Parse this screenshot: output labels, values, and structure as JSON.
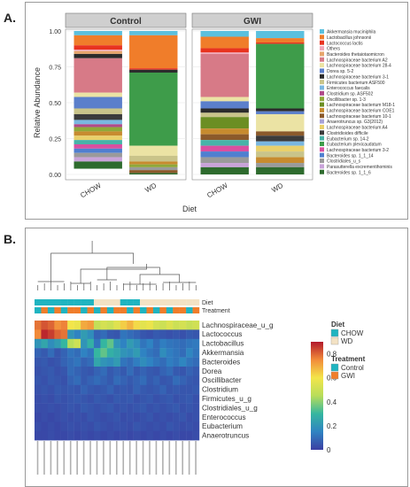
{
  "panelA": {
    "label": "A.",
    "chart_data": {
      "type": "bar",
      "stacked": true,
      "facets": [
        "Control",
        "GWI"
      ],
      "categories": [
        "CHOW",
        "WD"
      ],
      "xlabel": "Diet",
      "ylabel": "Relative Abundance",
      "ylim": [
        0,
        1
      ],
      "yticks": [
        "0.00",
        "0.25",
        "0.50",
        "0.75",
        "1.00"
      ],
      "grid": true,
      "legend_position": "right",
      "legend": [
        {
          "name": "Akkermansia muciniphila",
          "color": "#5bc0de"
        },
        {
          "name": "Lactobacillus johnsonii",
          "color": "#f07d2a"
        },
        {
          "name": "Lactococcus lactis",
          "color": "#e8331f"
        },
        {
          "name": "Others",
          "color": "#f2a7b8"
        },
        {
          "name": "Bacteroides thetaiotaomicron",
          "color": "#e6a56c"
        },
        {
          "name": "Lachnospiraceae bacterium A2",
          "color": "#d77a87"
        },
        {
          "name": "Lachnospiraceae bacterium 28-4",
          "color": "#ebe3a4"
        },
        {
          "name": "Dorea sp. 5-2",
          "color": "#5b7fcb"
        },
        {
          "name": "Lachnospiraceae bacterium 3-1",
          "color": "#2b2b2b"
        },
        {
          "name": "Firmicutes bacterium ASF500",
          "color": "#c9c48a"
        },
        {
          "name": "Enterococcus faecalis",
          "color": "#7ab7e0"
        },
        {
          "name": "Clostridium sp. ASF502",
          "color": "#b04a8a"
        },
        {
          "name": "Oscillibacter sp. 1-3",
          "color": "#8fa83a"
        },
        {
          "name": "Lachnospiraceae bacterium M18-1",
          "color": "#6b8e23"
        },
        {
          "name": "Lachnospiraceae bacterium COE1",
          "color": "#c78b2f"
        },
        {
          "name": "Lachnospiraceae bacterium 10-1",
          "color": "#8b5a2b"
        },
        {
          "name": "Anaerotruncus sp. G3(2012)",
          "color": "#a7a2d6"
        },
        {
          "name": "Lachnospiraceae bacterium A4",
          "color": "#e9d06b"
        },
        {
          "name": "Clostridioides difficile",
          "color": "#3b3b3b"
        },
        {
          "name": "Eubacterium sp. 14-2",
          "color": "#47b3a8"
        },
        {
          "name": "Eubacterium plexicaudatum",
          "color": "#3e9c4a"
        },
        {
          "name": "Lachnospiraceae bacterium 3-2",
          "color": "#d94fa0"
        },
        {
          "name": "Bacteroides sp. 1_1_14",
          "color": "#4f7fd0"
        },
        {
          "name": "Clostridiales_u_s",
          "color": "#9a9a9a"
        },
        {
          "name": "Parasutterella excrementihominis",
          "color": "#c9a3d9"
        },
        {
          "name": "Bacteroides sp. 1_1_6",
          "color": "#2e6b2e"
        }
      ],
      "bars": [
        {
          "facet": "Control",
          "category": "CHOW",
          "segments": [
            [
              "Akkermansia muciniphila",
              0.03
            ],
            [
              "Lactobacillus johnsonii",
              0.07
            ],
            [
              "Lactococcus lactis",
              0.03
            ],
            [
              "Others",
              0.01
            ],
            [
              "Bacteroides thetaiotaomicron",
              0.02
            ],
            [
              "Lachnospiraceae bacterium 3-1",
              0.03
            ],
            [
              "Lachnospiraceae bacterium A2",
              0.24
            ],
            [
              "Lachnospiraceae bacterium 28-4",
              0.03
            ],
            [
              "Dorea sp. 5-2",
              0.08
            ],
            [
              "Firmicutes bacterium ASF500",
              0.04
            ],
            [
              "Clostridioides difficile",
              0.04
            ],
            [
              "Enterococcus faecalis",
              0.03
            ],
            [
              "Clostridium sp. ASF502",
              0.02
            ],
            [
              "Oscillibacter sp. 1-3",
              0.03
            ],
            [
              "Lachnospiraceae bacterium COE1",
              0.03
            ],
            [
              "Lachnospiraceae bacterium A4",
              0.03
            ],
            [
              "Eubacterium sp. 14-2",
              0.03
            ],
            [
              "Lachnospiraceae bacterium 3-2",
              0.03
            ],
            [
              "Bacteroides sp. 1_1_14",
              0.03
            ],
            [
              "Clostridiales_u_s",
              0.03
            ],
            [
              "Parasutterella excrementihominis",
              0.03
            ],
            [
              "Bacteroides sp. 1_1_6",
              0.05
            ]
          ]
        },
        {
          "facet": "Control",
          "category": "WD",
          "segments": [
            [
              "Akkermansia muciniphila",
              0.03
            ],
            [
              "Lactobacillus johnsonii",
              0.23
            ],
            [
              "Lactococcus lactis",
              0.01
            ],
            [
              "Lachnospiraceae bacterium 3-1",
              0.02
            ],
            [
              "Eubacterium plexicaudatum",
              0.51
            ],
            [
              "Lachnospiraceae bacterium 28-4",
              0.07
            ],
            [
              "Firmicutes bacterium ASF500",
              0.04
            ],
            [
              "Lachnospiraceae bacterium COE1",
              0.02
            ],
            [
              "Oscillibacter sp. 1-3",
              0.02
            ],
            [
              "Clostridiales_u_s",
              0.02
            ],
            [
              "Lachnospiraceae bacterium 10-1",
              0.02
            ],
            [
              "Bacteroides sp. 1_1_6",
              0.01
            ]
          ]
        },
        {
          "facet": "GWI",
          "category": "CHOW",
          "segments": [
            [
              "Akkermansia muciniphila",
              0.04
            ],
            [
              "Lactobacillus johnsonii",
              0.08
            ],
            [
              "Lactococcus lactis",
              0.03
            ],
            [
              "Others",
              0.01
            ],
            [
              "Lachnospiraceae bacterium A2",
              0.3
            ],
            [
              "Lachnospiraceae bacterium 28-4",
              0.03
            ],
            [
              "Dorea sp. 5-2",
              0.05
            ],
            [
              "Lachnospiraceae bacterium 3-1",
              0.03
            ],
            [
              "Firmicutes bacterium ASF500",
              0.03
            ],
            [
              "Lachnospiraceae bacterium M18-1",
              0.08
            ],
            [
              "Lachnospiraceae bacterium COE1",
              0.04
            ],
            [
              "Lachnospiraceae bacterium 10-1",
              0.04
            ],
            [
              "Eubacterium sp. 14-2",
              0.04
            ],
            [
              "Lachnospiraceae bacterium 3-2",
              0.04
            ],
            [
              "Bacteroides sp. 1_1_14",
              0.04
            ],
            [
              "Clostridiales_u_s",
              0.04
            ],
            [
              "Parasutterella excrementihominis",
              0.03
            ],
            [
              "Bacteroides sp. 1_1_6",
              0.05
            ]
          ]
        },
        {
          "facet": "GWI",
          "category": "WD",
          "segments": [
            [
              "Akkermansia muciniphila",
              0.05
            ],
            [
              "Lactobacillus johnsonii",
              0.03
            ],
            [
              "Lactococcus lactis",
              0.01
            ],
            [
              "Eubacterium plexicaudatum",
              0.45
            ],
            [
              "Lachnospiraceae bacterium 3-1",
              0.02
            ],
            [
              "Dorea sp. 5-2",
              0.02
            ],
            [
              "Lachnospiraceae bacterium 28-4",
              0.12
            ],
            [
              "Lachnospiraceae bacterium 10-1",
              0.03
            ],
            [
              "Clostridioides difficile",
              0.04
            ],
            [
              "Enterococcus faecalis",
              0.03
            ],
            [
              "Lachnospiraceae bacterium A4",
              0.04
            ],
            [
              "Firmicutes bacterium ASF500",
              0.04
            ],
            [
              "Lachnospiraceae bacterium COE1",
              0.04
            ],
            [
              "Clostridiales_u_s",
              0.03
            ],
            [
              "Bacteroides sp. 1_1_6",
              0.05
            ]
          ]
        }
      ]
    }
  },
  "panelB": {
    "label": "B.",
    "chart_data": {
      "type": "heatmap",
      "rows": [
        "Lachnospiraceae_u_g",
        "Lactococcus",
        "Lactobacillus",
        "Akkermansia",
        "Bacteroides",
        "Dorea",
        "Oscillibacter",
        "Clostridium",
        "Firmicutes_u_g",
        "Clostridiales_u_g",
        "Enterococcus",
        "Eubacterium",
        "Anaerotruncus"
      ],
      "annotation_labels": [
        "Diet",
        "Treatment"
      ],
      "diet_annotation": [
        "CHOW",
        "CHOW",
        "CHOW",
        "CHOW",
        "CHOW",
        "CHOW",
        "CHOW",
        "CHOW",
        "CHOW",
        "WD",
        "WD",
        "WD",
        "WD",
        "CHOW",
        "CHOW",
        "CHOW",
        "WD",
        "WD",
        "WD",
        "WD",
        "WD",
        "WD",
        "WD",
        "WD",
        "WD"
      ],
      "treatment_annotation": [
        "Control",
        "GWI",
        "Control",
        "GWI",
        "Control",
        "GWI",
        "GWI",
        "Control",
        "GWI",
        "Control",
        "GWI",
        "Control",
        "GWI",
        "GWI",
        "Control",
        "GWI",
        "Control",
        "GWI",
        "Control",
        "GWI",
        "Control",
        "GWI",
        "GWI",
        "Control",
        "GWI"
      ],
      "color_scale": {
        "min": 0,
        "max": 0.9,
        "ticks": [
          "0.8",
          "0.6",
          "0.4",
          "0.2",
          "0"
        ],
        "tick_values": [
          0.8,
          0.6,
          0.4,
          0.2,
          0
        ],
        "stops": [
          "#3b3fa3",
          "#2f83c2",
          "#35b6a0",
          "#b8dd5a",
          "#f3e54a",
          "#f28b3a",
          "#b2182b"
        ]
      },
      "values": [
        [
          0.78,
          0.82,
          0.8,
          0.74,
          0.76,
          0.6,
          0.58,
          0.7,
          0.72,
          0.48,
          0.52,
          0.5,
          0.55,
          0.64,
          0.68,
          0.62,
          0.56,
          0.58,
          0.52,
          0.5,
          0.54,
          0.5,
          0.52,
          0.49,
          0.51
        ],
        [
          0.75,
          0.88,
          0.85,
          0.8,
          0.78,
          0.2,
          0.15,
          0.22,
          0.18,
          0.08,
          0.1,
          0.06,
          0.05,
          0.12,
          0.1,
          0.08,
          0.05,
          0.04,
          0.06,
          0.05,
          0.04,
          0.05,
          0.04,
          0.06,
          0.05
        ],
        [
          0.2,
          0.25,
          0.18,
          0.22,
          0.3,
          0.45,
          0.5,
          0.2,
          0.28,
          0.12,
          0.3,
          0.35,
          0.2,
          0.15,
          0.22,
          0.18,
          0.12,
          0.15,
          0.1,
          0.14,
          0.12,
          0.11,
          0.1,
          0.12,
          0.13
        ],
        [
          0.08,
          0.06,
          0.1,
          0.05,
          0.08,
          0.12,
          0.1,
          0.15,
          0.12,
          0.3,
          0.35,
          0.28,
          0.25,
          0.2,
          0.18,
          0.22,
          0.15,
          0.12,
          0.1,
          0.18,
          0.14,
          0.12,
          0.1,
          0.16,
          0.12
        ],
        [
          0.05,
          0.06,
          0.04,
          0.05,
          0.08,
          0.1,
          0.12,
          0.08,
          0.1,
          0.25,
          0.2,
          0.18,
          0.22,
          0.12,
          0.1,
          0.14,
          0.18,
          0.15,
          0.12,
          0.1,
          0.14,
          0.12,
          0.16,
          0.12,
          0.1
        ],
        [
          0.04,
          0.05,
          0.06,
          0.04,
          0.05,
          0.1,
          0.08,
          0.06,
          0.05,
          0.08,
          0.1,
          0.06,
          0.08,
          0.06,
          0.1,
          0.06,
          0.08,
          0.06,
          0.05,
          0.08,
          0.1,
          0.06,
          0.05,
          0.08,
          0.06
        ],
        [
          0.05,
          0.04,
          0.06,
          0.05,
          0.04,
          0.08,
          0.1,
          0.06,
          0.08,
          0.1,
          0.08,
          0.06,
          0.1,
          0.08,
          0.06,
          0.08,
          0.1,
          0.06,
          0.08,
          0.05,
          0.06,
          0.1,
          0.08,
          0.06,
          0.05
        ],
        [
          0.04,
          0.05,
          0.04,
          0.06,
          0.05,
          0.06,
          0.05,
          0.08,
          0.06,
          0.05,
          0.06,
          0.08,
          0.05,
          0.06,
          0.05,
          0.08,
          0.06,
          0.05,
          0.06,
          0.08,
          0.05,
          0.06,
          0.05,
          0.05,
          0.06
        ],
        [
          0.03,
          0.04,
          0.03,
          0.05,
          0.04,
          0.05,
          0.06,
          0.05,
          0.04,
          0.06,
          0.05,
          0.04,
          0.06,
          0.05,
          0.06,
          0.04,
          0.05,
          0.06,
          0.04,
          0.05,
          0.06,
          0.04,
          0.05,
          0.06,
          0.04
        ],
        [
          0.03,
          0.03,
          0.04,
          0.03,
          0.04,
          0.05,
          0.04,
          0.06,
          0.05,
          0.04,
          0.05,
          0.06,
          0.04,
          0.05,
          0.04,
          0.05,
          0.06,
          0.04,
          0.05,
          0.04,
          0.05,
          0.06,
          0.04,
          0.05,
          0.04
        ],
        [
          0.02,
          0.03,
          0.02,
          0.03,
          0.04,
          0.03,
          0.04,
          0.03,
          0.05,
          0.04,
          0.03,
          0.04,
          0.05,
          0.03,
          0.04,
          0.03,
          0.04,
          0.05,
          0.03,
          0.04,
          0.03,
          0.04,
          0.05,
          0.03,
          0.04
        ],
        [
          0.03,
          0.02,
          0.03,
          0.02,
          0.03,
          0.04,
          0.03,
          0.04,
          0.03,
          0.05,
          0.04,
          0.03,
          0.04,
          0.04,
          0.03,
          0.05,
          0.04,
          0.03,
          0.04,
          0.03,
          0.05,
          0.04,
          0.03,
          0.04,
          0.03
        ],
        [
          0.02,
          0.02,
          0.03,
          0.02,
          0.02,
          0.03,
          0.02,
          0.03,
          0.02,
          0.03,
          0.02,
          0.03,
          0.02,
          0.03,
          0.02,
          0.03,
          0.02,
          0.03,
          0.02,
          0.03,
          0.02,
          0.03,
          0.02,
          0.02,
          0.03
        ]
      ],
      "legend_diet_title": "Diet",
      "legend_diet": [
        {
          "name": "CHOW",
          "color": "#1fb4c0"
        },
        {
          "name": "WD",
          "color": "#f3e2c4"
        }
      ],
      "legend_treatment_title": "Treatment",
      "legend_treatment": [
        {
          "name": "Control",
          "color": "#1fb4c0"
        },
        {
          "name": "GWI",
          "color": "#f07d2a"
        }
      ]
    }
  }
}
